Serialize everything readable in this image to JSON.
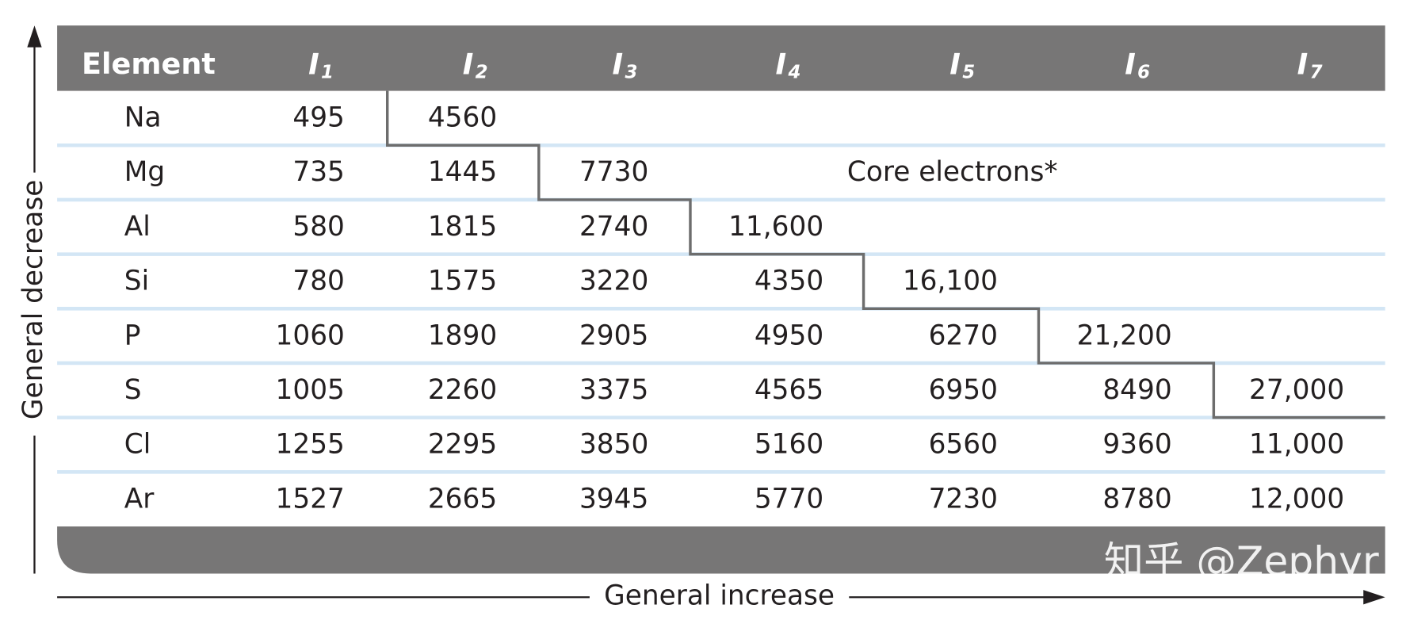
{
  "table": {
    "header": {
      "element": "Element",
      "energies": [
        {
          "symbol": "I",
          "sub": "1"
        },
        {
          "symbol": "I",
          "sub": "2"
        },
        {
          "symbol": "I",
          "sub": "3"
        },
        {
          "symbol": "I",
          "sub": "4"
        },
        {
          "symbol": "I",
          "sub": "5"
        },
        {
          "symbol": "I",
          "sub": "6"
        },
        {
          "symbol": "I",
          "sub": "7"
        }
      ]
    },
    "rows": [
      [
        "Na",
        "495",
        "4560"
      ],
      [
        "Mg",
        "735",
        "1445",
        "7730"
      ],
      [
        "Al",
        "580",
        "1815",
        "2740",
        "11,600"
      ],
      [
        "Si",
        "780",
        "1575",
        "3220",
        "4350",
        "16,100"
      ],
      [
        "P",
        "1060",
        "1890",
        "2905",
        "4950",
        "6270",
        "21,200"
      ],
      [
        "S",
        "1005",
        "2260",
        "3375",
        "4565",
        "6950",
        "8490",
        "27,000"
      ],
      [
        "Cl",
        "1255",
        "2295",
        "3850",
        "5160",
        "6560",
        "9360",
        "11,000"
      ],
      [
        "Ar",
        "1527",
        "2665",
        "3945",
        "5770",
        "7230",
        "8780",
        "12,000"
      ]
    ],
    "core_label": "Core electrons*"
  },
  "axes": {
    "vertical": "General decrease",
    "horizontal": "General increase"
  },
  "watermark": "知乎 @Zephyr"
}
